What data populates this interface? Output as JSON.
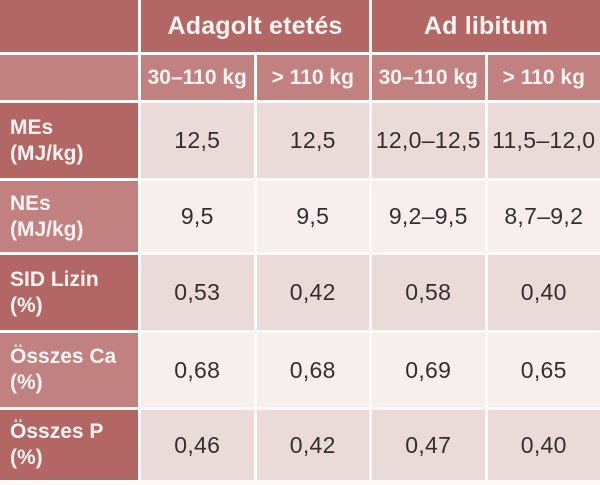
{
  "chart_data": {
    "type": "table",
    "title": "",
    "column_groups": [
      {
        "label": "Adagolt etetés",
        "span": 2
      },
      {
        "label": "Ad libitum",
        "span": 2
      }
    ],
    "sub_headers": [
      "30–110 kg",
      "> 110 kg",
      "30–110 kg",
      "> 110 kg"
    ],
    "rows": [
      {
        "label": "MEs",
        "unit": "(MJ/kg)",
        "values": [
          "12,5",
          "12,5",
          "12,0–12,5",
          "11,5–12,0"
        ]
      },
      {
        "label": "NEs",
        "unit": "(MJ/kg)",
        "values": [
          "9,5",
          "9,5",
          "9,2–9,5",
          "8,7–9,2"
        ]
      },
      {
        "label": "SID Lizin",
        "unit": "(%)",
        "values": [
          "0,53",
          "0,42",
          "0,58",
          "0,40"
        ]
      },
      {
        "label": "Összes Ca",
        "unit": "(%)",
        "values": [
          "0,68",
          "0,68",
          "0,69",
          "0,65"
        ]
      },
      {
        "label": "Összes P",
        "unit": "(%)",
        "values": [
          "0,46",
          "0,42",
          "0,47",
          "0,40"
        ]
      }
    ],
    "colors": {
      "header_dark_rose": "#b26765",
      "header_light_rose": "#c08180",
      "data_row_dark": "#ebdbd8",
      "data_row_light": "#f7efed",
      "cell_border": "#fcfaf9",
      "header_text": "#fdf4f2",
      "data_text": "#332f2f"
    },
    "decimal_separator": ",",
    "layout_hints": "two-level header; first column row labels; alternating row shading dark/light"
  }
}
